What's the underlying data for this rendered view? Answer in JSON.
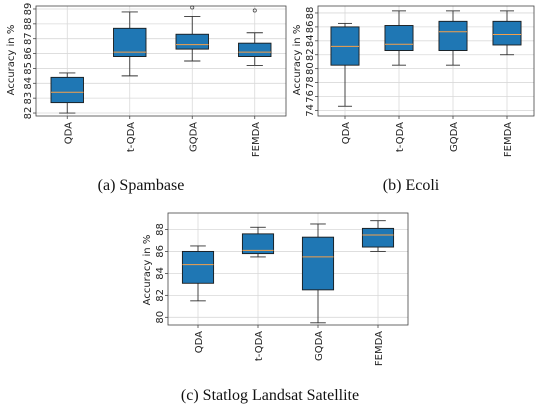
{
  "chart_data": [
    {
      "type": "box",
      "caption": "(a)  Spambase",
      "ylabel": "Accuracy in %",
      "ylim": [
        81.8,
        89.2
      ],
      "yticks": [
        82,
        83,
        84,
        85,
        86,
        87,
        88,
        89
      ],
      "categories": [
        "QDA",
        "t-QDA",
        "GQDA",
        "FEMDA"
      ],
      "grid": true,
      "boxes": [
        {
          "whislo": 82.0,
          "q1": 82.7,
          "med": 83.4,
          "q3": 84.4,
          "whishi": 84.7,
          "fliers": []
        },
        {
          "whislo": 84.5,
          "q1": 85.8,
          "med": 86.1,
          "q3": 87.7,
          "whishi": 88.8,
          "fliers": []
        },
        {
          "whislo": 85.5,
          "q1": 86.3,
          "med": 86.6,
          "q3": 87.3,
          "whishi": 88.5,
          "fliers": [
            89.1
          ]
        },
        {
          "whislo": 85.2,
          "q1": 85.8,
          "med": 86.1,
          "q3": 86.7,
          "whishi": 87.4,
          "fliers": [
            88.9
          ]
        }
      ],
      "box_color": "#1f77b4",
      "median_color": "#f5a04a"
    },
    {
      "type": "box",
      "caption": "(b)  Ecoli",
      "ylabel": "Accuracy in %",
      "ylim": [
        73.2,
        89.0
      ],
      "yticks": [
        74,
        76,
        78,
        80,
        82,
        84,
        86,
        88
      ],
      "categories": [
        "QDA",
        "t-QDA",
        "GQDA",
        "FEMDA"
      ],
      "grid": true,
      "boxes": [
        {
          "whislo": 74.6,
          "q1": 80.5,
          "med": 83.2,
          "q3": 86.0,
          "whishi": 86.5,
          "fliers": []
        },
        {
          "whislo": 80.5,
          "q1": 82.6,
          "med": 83.5,
          "q3": 86.2,
          "whishi": 88.3,
          "fliers": []
        },
        {
          "whislo": 80.5,
          "q1": 82.6,
          "med": 85.3,
          "q3": 86.8,
          "whishi": 88.3,
          "fliers": []
        },
        {
          "whislo": 82.0,
          "q1": 83.4,
          "med": 84.9,
          "q3": 86.8,
          "whishi": 88.3,
          "fliers": []
        }
      ],
      "box_color": "#1f77b4",
      "median_color": "#f5a04a"
    },
    {
      "type": "box",
      "caption": "(c)  Statlog Landsat Satellite",
      "ylabel": "Accuracy in %",
      "ylim": [
        79.3,
        89.5
      ],
      "yticks": [
        80,
        82,
        84,
        86,
        88
      ],
      "categories": [
        "QDA",
        "t-QDA",
        "GQDA",
        "FEMDA"
      ],
      "grid": true,
      "boxes": [
        {
          "whislo": 81.5,
          "q1": 83.1,
          "med": 84.8,
          "q3": 86.0,
          "whishi": 86.5,
          "fliers": []
        },
        {
          "whislo": 85.5,
          "q1": 85.8,
          "med": 86.1,
          "q3": 87.6,
          "whishi": 88.2,
          "fliers": []
        },
        {
          "whislo": 79.5,
          "q1": 82.5,
          "med": 85.5,
          "q3": 87.3,
          "whishi": 88.5,
          "fliers": []
        },
        {
          "whislo": 86.0,
          "q1": 86.4,
          "med": 87.5,
          "q3": 88.1,
          "whishi": 88.8,
          "fliers": []
        }
      ],
      "box_color": "#1f77b4",
      "median_color": "#f5a04a"
    }
  ]
}
